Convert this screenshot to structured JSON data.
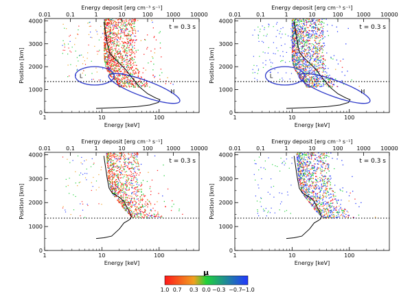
{
  "chart_data": [
    {
      "type": "scatter",
      "id": "panel-top-left",
      "time_label": "t = 0.3 s",
      "xlabel": "Energy [keV]",
      "ylabel": "Position [km]",
      "top_xlabel": "Energy deposit [erg cm⁻³ s⁻¹]",
      "xscale": "log",
      "xlim": [
        1,
        500
      ],
      "ylim": [
        0,
        4100
      ],
      "top_xlim": [
        0.01,
        10000
      ],
      "x_ticks": [
        {
          "v": 1,
          "label": "1"
        },
        {
          "v": 10,
          "label": "10"
        },
        {
          "v": 100,
          "label": "100"
        }
      ],
      "y_ticks": [
        {
          "v": 0,
          "label": "0"
        },
        {
          "v": 1000,
          "label": "1000"
        },
        {
          "v": 2000,
          "label": "2000"
        },
        {
          "v": 3000,
          "label": "3000"
        },
        {
          "v": 4000,
          "label": "4000"
        }
      ],
      "top_ticks": [
        {
          "v": 0.01,
          "label": "0.01"
        },
        {
          "v": 0.1,
          "label": "0.1"
        },
        {
          "v": 1,
          "label": "1"
        },
        {
          "v": 10,
          "label": "10"
        },
        {
          "v": 100,
          "label": "100"
        },
        {
          "v": 1000,
          "label": "1000"
        },
        {
          "v": 10000,
          "label": "10000"
        }
      ],
      "dotted_line_y": 1350,
      "cutoff_energy": 11,
      "cloud_profile": [
        [
          1100,
          20
        ],
        [
          1350,
          18
        ],
        [
          1600,
          14
        ],
        [
          1900,
          12
        ],
        [
          2300,
          11
        ],
        [
          3000,
          11
        ],
        [
          4100,
          11
        ]
      ],
      "scatter_count": 1400,
      "mu_bias": 0.65,
      "deposit_curve": [
        [
          2.0,
          3950
        ],
        [
          2.3,
          3500
        ],
        [
          2.7,
          3000
        ],
        [
          3.3,
          2620
        ],
        [
          4.5,
          2420
        ],
        [
          6.5,
          2250
        ],
        [
          9,
          2100
        ],
        [
          12,
          1950
        ],
        [
          15,
          1840
        ],
        [
          20,
          1650
        ],
        [
          30,
          1400
        ],
        [
          50,
          1100
        ],
        [
          100,
          820
        ],
        [
          200,
          640
        ],
        [
          300,
          560
        ],
        [
          260,
          440
        ],
        [
          120,
          330
        ],
        [
          40,
          260
        ],
        [
          10,
          220
        ],
        [
          3,
          200
        ],
        [
          1,
          180
        ]
      ],
      "regions": [
        {
          "label": "L",
          "center": [
            7.5,
            1600
          ],
          "rx_dec": 0.34,
          "ry": 400,
          "angle_deg": 0
        },
        {
          "label": "H",
          "center": [
            55,
            1050
          ],
          "rx_dec": 0.66,
          "ry": 350,
          "angle_deg": 20
        }
      ]
    },
    {
      "type": "scatter",
      "id": "panel-top-right",
      "time_label": "t = 0.3 s",
      "xlabel": "Energy [keV]",
      "ylabel": "Position [km]",
      "top_xlabel": "Energy deposit [erg cm⁻³ s⁻¹]",
      "xscale": "log",
      "xlim": [
        1,
        500
      ],
      "ylim": [
        0,
        4100
      ],
      "top_xlim": [
        0.01,
        10000
      ],
      "x_ticks": [
        {
          "v": 1,
          "label": "1"
        },
        {
          "v": 10,
          "label": "10"
        },
        {
          "v": 100,
          "label": "100"
        }
      ],
      "y_ticks": [
        {
          "v": 0,
          "label": "0"
        },
        {
          "v": 1000,
          "label": "1000"
        },
        {
          "v": 2000,
          "label": "2000"
        },
        {
          "v": 3000,
          "label": "3000"
        },
        {
          "v": 4000,
          "label": "4000"
        }
      ],
      "top_ticks": [
        {
          "v": 0.01,
          "label": "0.01"
        },
        {
          "v": 0.1,
          "label": "0.1"
        },
        {
          "v": 1,
          "label": "1"
        },
        {
          "v": 10,
          "label": "10"
        },
        {
          "v": 100,
          "label": "100"
        },
        {
          "v": 1000,
          "label": "1000"
        },
        {
          "v": 10000,
          "label": "10000"
        }
      ],
      "dotted_line_y": 1350,
      "cutoff_energy": 10,
      "cloud_profile": [
        [
          1100,
          18
        ],
        [
          1350,
          16
        ],
        [
          1600,
          13
        ],
        [
          1900,
          11
        ],
        [
          2300,
          10
        ],
        [
          3000,
          10
        ],
        [
          4100,
          10
        ]
      ],
      "scatter_count": 1500,
      "mu_bias": 0.0,
      "deposit_curve": [
        [
          2.0,
          3950
        ],
        [
          2.3,
          3500
        ],
        [
          2.7,
          3000
        ],
        [
          3.3,
          2620
        ],
        [
          4.5,
          2420
        ],
        [
          6.5,
          2250
        ],
        [
          9,
          2100
        ],
        [
          12,
          1950
        ],
        [
          15,
          1840
        ],
        [
          20,
          1650
        ],
        [
          30,
          1400
        ],
        [
          50,
          1100
        ],
        [
          100,
          820
        ],
        [
          200,
          640
        ],
        [
          300,
          560
        ],
        [
          260,
          440
        ],
        [
          120,
          330
        ],
        [
          40,
          260
        ],
        [
          10,
          220
        ],
        [
          3,
          200
        ],
        [
          1,
          180
        ]
      ],
      "regions": [
        {
          "label": "L",
          "center": [
            7.5,
            1600
          ],
          "rx_dec": 0.34,
          "ry": 400,
          "angle_deg": 0
        },
        {
          "label": "H",
          "center": [
            55,
            1050
          ],
          "rx_dec": 0.66,
          "ry": 350,
          "angle_deg": 20
        }
      ]
    },
    {
      "type": "scatter",
      "id": "panel-bottom-left",
      "time_label": "t = 0.3 s",
      "xlabel": "Energy [keV]",
      "ylabel": "Position [km]",
      "top_xlabel": "Energy deposit [erg cm⁻³ s⁻¹]",
      "xscale": "log",
      "xlim": [
        1,
        500
      ],
      "ylim": [
        0,
        4100
      ],
      "top_xlim": [
        0.01,
        10000
      ],
      "x_ticks": [
        {
          "v": 1,
          "label": "1"
        },
        {
          "v": 10,
          "label": "10"
        },
        {
          "v": 100,
          "label": "100"
        }
      ],
      "y_ticks": [
        {
          "v": 0,
          "label": "0"
        },
        {
          "v": 1000,
          "label": "1000"
        },
        {
          "v": 2000,
          "label": "2000"
        },
        {
          "v": 3000,
          "label": "3000"
        },
        {
          "v": 4000,
          "label": "4000"
        }
      ],
      "top_ticks": [
        {
          "v": 0.01,
          "label": "0.01"
        },
        {
          "v": 0.1,
          "label": "0.1"
        },
        {
          "v": 1,
          "label": "1"
        },
        {
          "v": 10,
          "label": "10"
        },
        {
          "v": 100,
          "label": "100"
        },
        {
          "v": 1000,
          "label": "1000"
        },
        {
          "v": 10000,
          "label": "10000"
        }
      ],
      "dotted_line_y": 1350,
      "cutoff_energy": 10,
      "cloud_profile": [
        [
          1350,
          35
        ],
        [
          1700,
          25
        ],
        [
          2000,
          20
        ],
        [
          2400,
          15
        ],
        [
          3000,
          13
        ],
        [
          4100,
          12
        ]
      ],
      "scatter_count": 1000,
      "mu_bias": 0.55,
      "deposit_curve": [
        [
          2.0,
          3950
        ],
        [
          2.3,
          3500
        ],
        [
          2.7,
          3000
        ],
        [
          3.2,
          2600
        ],
        [
          4.2,
          2400
        ],
        [
          6,
          2300
        ],
        [
          8.5,
          2200
        ],
        [
          12,
          2050
        ],
        [
          15,
          1850
        ],
        [
          18,
          1700
        ],
        [
          21,
          1550
        ],
        [
          23,
          1420
        ],
        [
          22,
          1330
        ],
        [
          18,
          1260
        ],
        [
          12,
          1150
        ],
        [
          8,
          900
        ],
        [
          4,
          600
        ],
        [
          2,
          530
        ],
        [
          1,
          500
        ]
      ],
      "regions": []
    },
    {
      "type": "scatter",
      "id": "panel-bottom-right",
      "time_label": "t = 0.3 s",
      "xlabel": "Energy [keV]",
      "ylabel": "Position [km]",
      "top_xlabel": "Energy deposit [erg cm⁻³ s⁻¹]",
      "xscale": "log",
      "xlim": [
        1,
        500
      ],
      "ylim": [
        0,
        4100
      ],
      "top_xlim": [
        0.01,
        10000
      ],
      "x_ticks": [
        {
          "v": 1,
          "label": "1"
        },
        {
          "v": 10,
          "label": "10"
        },
        {
          "v": 100,
          "label": "100"
        }
      ],
      "y_ticks": [
        {
          "v": 0,
          "label": "0"
        },
        {
          "v": 1000,
          "label": "1000"
        },
        {
          "v": 2000,
          "label": "2000"
        },
        {
          "v": 3000,
          "label": "3000"
        },
        {
          "v": 4000,
          "label": "4000"
        }
      ],
      "top_ticks": [
        {
          "v": 0.01,
          "label": "0.01"
        },
        {
          "v": 0.1,
          "label": "0.1"
        },
        {
          "v": 1,
          "label": "1"
        },
        {
          "v": 10,
          "label": "10"
        },
        {
          "v": 100,
          "label": "100"
        },
        {
          "v": 1000,
          "label": "1000"
        },
        {
          "v": 10000,
          "label": "10000"
        }
      ],
      "dotted_line_y": 1350,
      "cutoff_energy": 10,
      "cloud_profile": [
        [
          1350,
          35
        ],
        [
          1700,
          25
        ],
        [
          2000,
          20
        ],
        [
          2400,
          15
        ],
        [
          3000,
          13
        ],
        [
          4100,
          12
        ]
      ],
      "scatter_count": 1100,
      "mu_bias": 0.0,
      "deposit_curve": [
        [
          2.0,
          3950
        ],
        [
          2.3,
          3500
        ],
        [
          2.7,
          3000
        ],
        [
          3.2,
          2600
        ],
        [
          4.2,
          2400
        ],
        [
          6,
          2300
        ],
        [
          8.5,
          2200
        ],
        [
          12,
          2050
        ],
        [
          15,
          1850
        ],
        [
          18,
          1700
        ],
        [
          21,
          1550
        ],
        [
          23,
          1420
        ],
        [
          22,
          1330
        ],
        [
          18,
          1260
        ],
        [
          12,
          1150
        ],
        [
          8,
          900
        ],
        [
          4,
          600
        ],
        [
          2,
          530
        ],
        [
          1,
          500
        ]
      ],
      "regions": []
    }
  ],
  "colorbar": {
    "title": "μ",
    "min": -1.0,
    "max": 1.0,
    "ticks": [
      {
        "v": 1.0,
        "label": "1.0"
      },
      {
        "v": 0.7,
        "label": "0.7"
      },
      {
        "v": 0.3,
        "label": "0.3"
      },
      {
        "v": 0.0,
        "label": "0.0"
      },
      {
        "v": -0.3,
        "label": "−0.3"
      },
      {
        "v": -0.7,
        "label": "−0.7"
      },
      {
        "v": -1.0,
        "label": "−1.0"
      }
    ],
    "colors": {
      "red": "#ff1a1a",
      "orange": "#f0a020",
      "green": "#1fd23a",
      "blue": "#2238ff"
    }
  }
}
